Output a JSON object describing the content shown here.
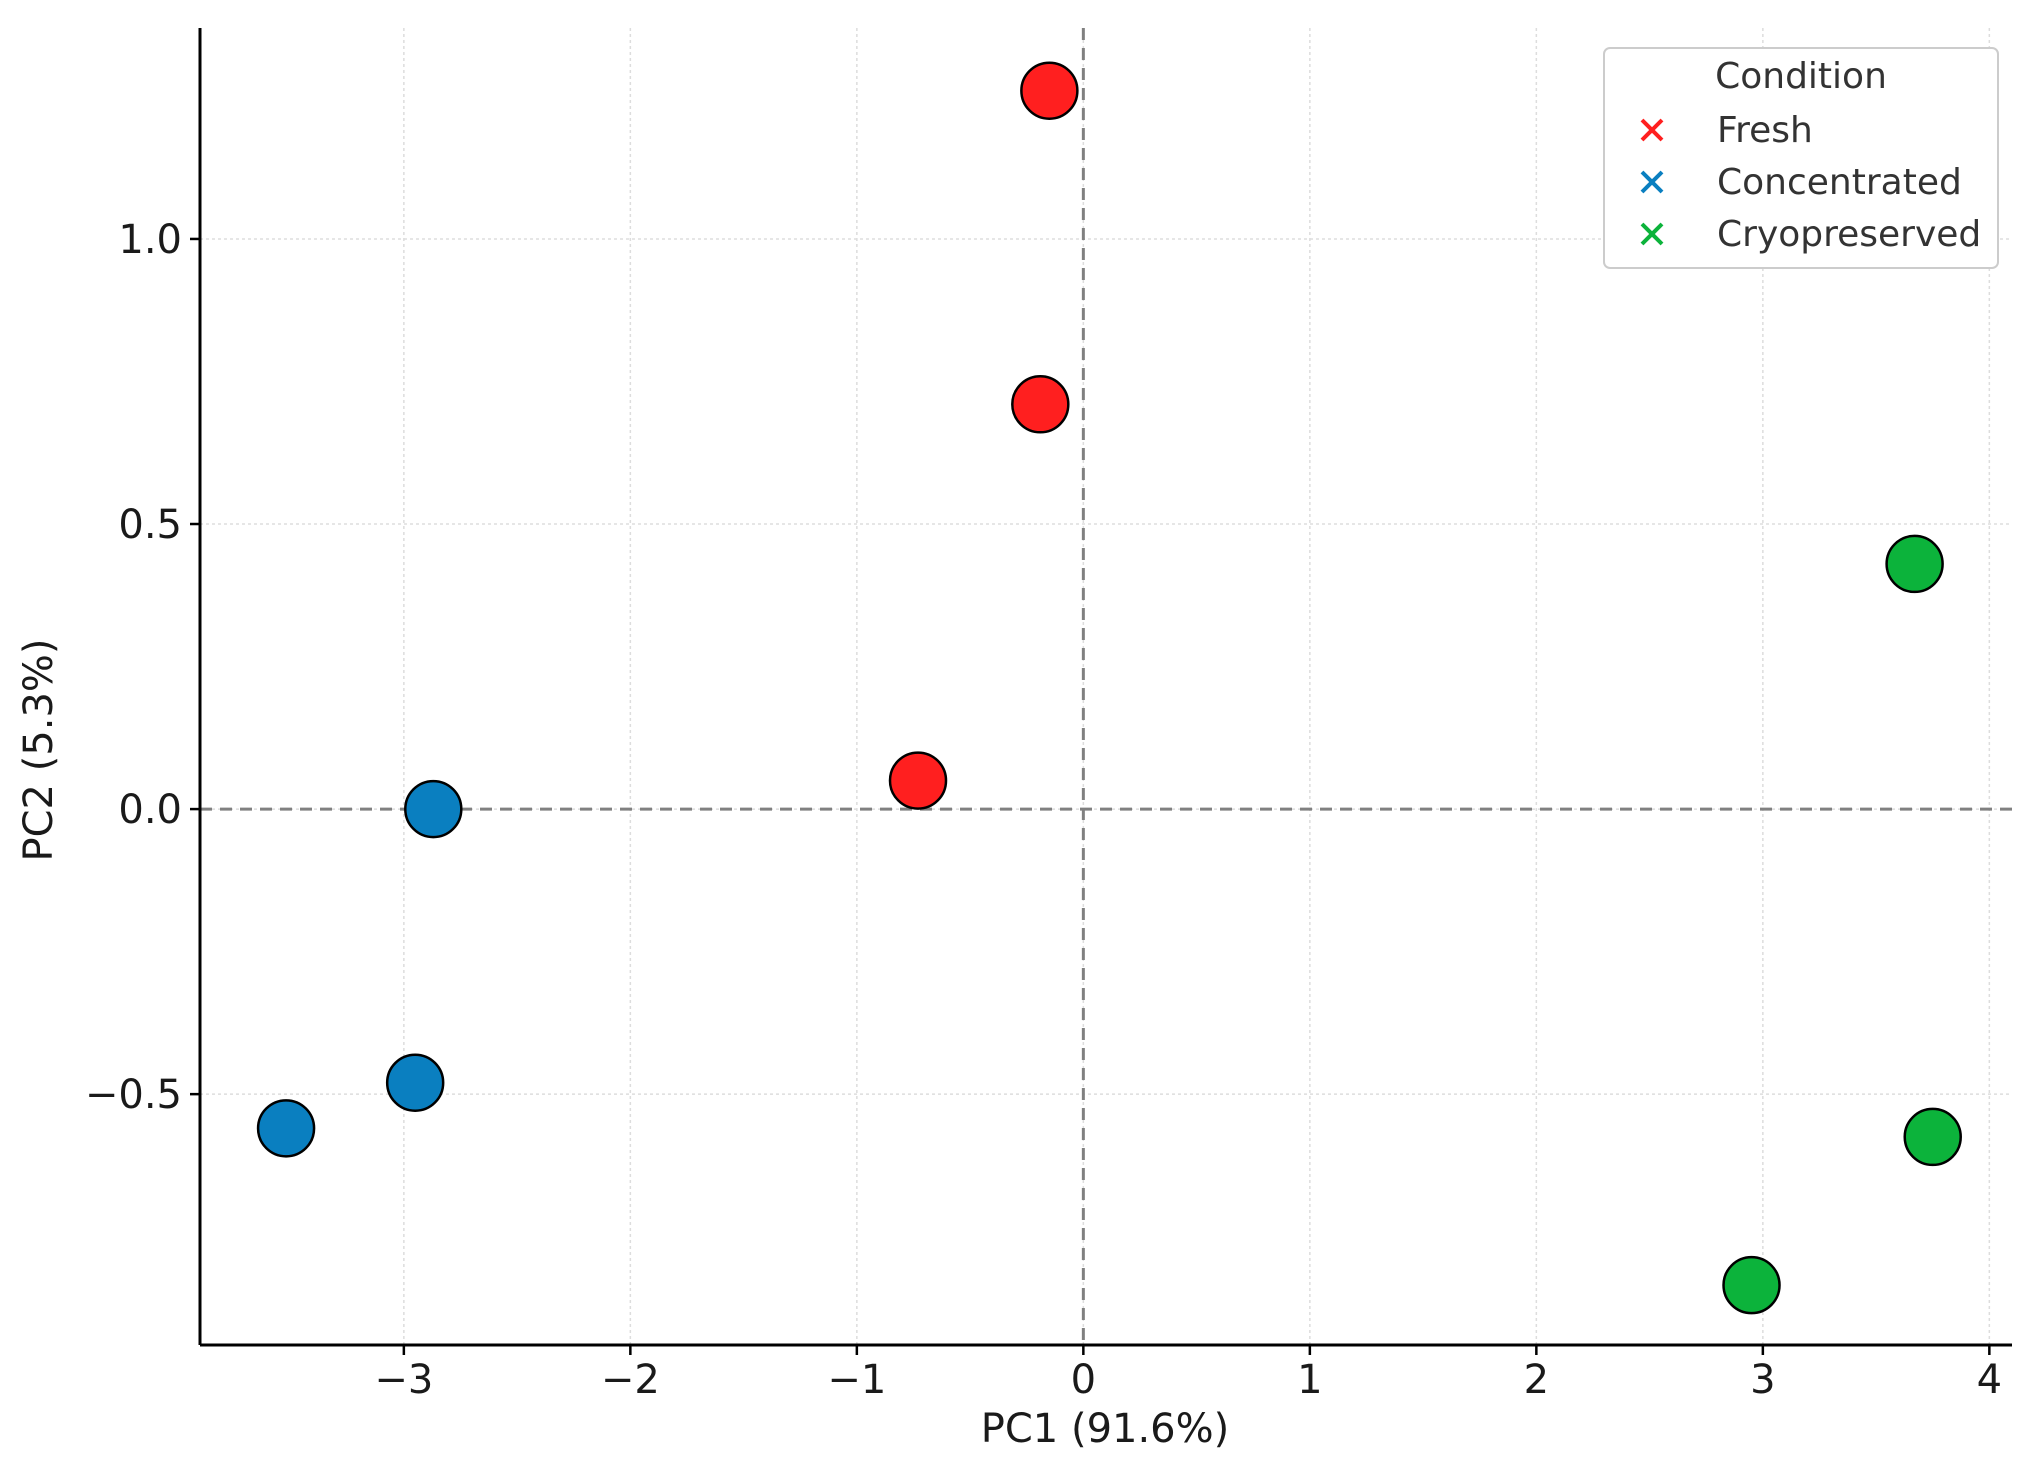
{
  "chart_data": {
    "type": "scatter",
    "title": "",
    "xlabel": "PC1 (91.6%)",
    "ylabel": "PC2 (5.3%)",
    "xlim": [
      -3.9,
      4.1
    ],
    "ylim": [
      -0.94,
      1.37
    ],
    "xticks": [
      -3,
      -2,
      -1,
      0,
      1,
      2,
      3,
      4
    ],
    "xtick_labels": [
      "−3",
      "−2",
      "−1",
      "0",
      "1",
      "2",
      "3",
      "4"
    ],
    "yticks": [
      -0.5,
      0.0,
      0.5,
      1.0
    ],
    "ytick_labels": [
      "−0.5",
      "0.0",
      "0.5",
      "1.0"
    ],
    "grid": true,
    "reference_lines": {
      "x": 0,
      "y": 0,
      "style": "dashed"
    },
    "legend": {
      "title": "Condition",
      "position": "top-right",
      "marker": "x"
    },
    "series": [
      {
        "name": "Fresh",
        "color": "#ff1f1f",
        "points": [
          {
            "x": -0.15,
            "y": 1.26
          },
          {
            "x": -0.19,
            "y": 0.71
          },
          {
            "x": -0.73,
            "y": 0.05
          }
        ]
      },
      {
        "name": "Concentrated",
        "color": "#0a7fc0",
        "points": [
          {
            "x": -2.87,
            "y": 0.0
          },
          {
            "x": -2.95,
            "y": -0.48
          },
          {
            "x": -3.52,
            "y": -0.56
          }
        ]
      },
      {
        "name": "Cryopreserved",
        "color": "#0cb33b",
        "points": [
          {
            "x": 3.67,
            "y": 0.43
          },
          {
            "x": 3.75,
            "y": -0.575
          },
          {
            "x": 2.95,
            "y": -0.835
          }
        ]
      }
    ]
  }
}
